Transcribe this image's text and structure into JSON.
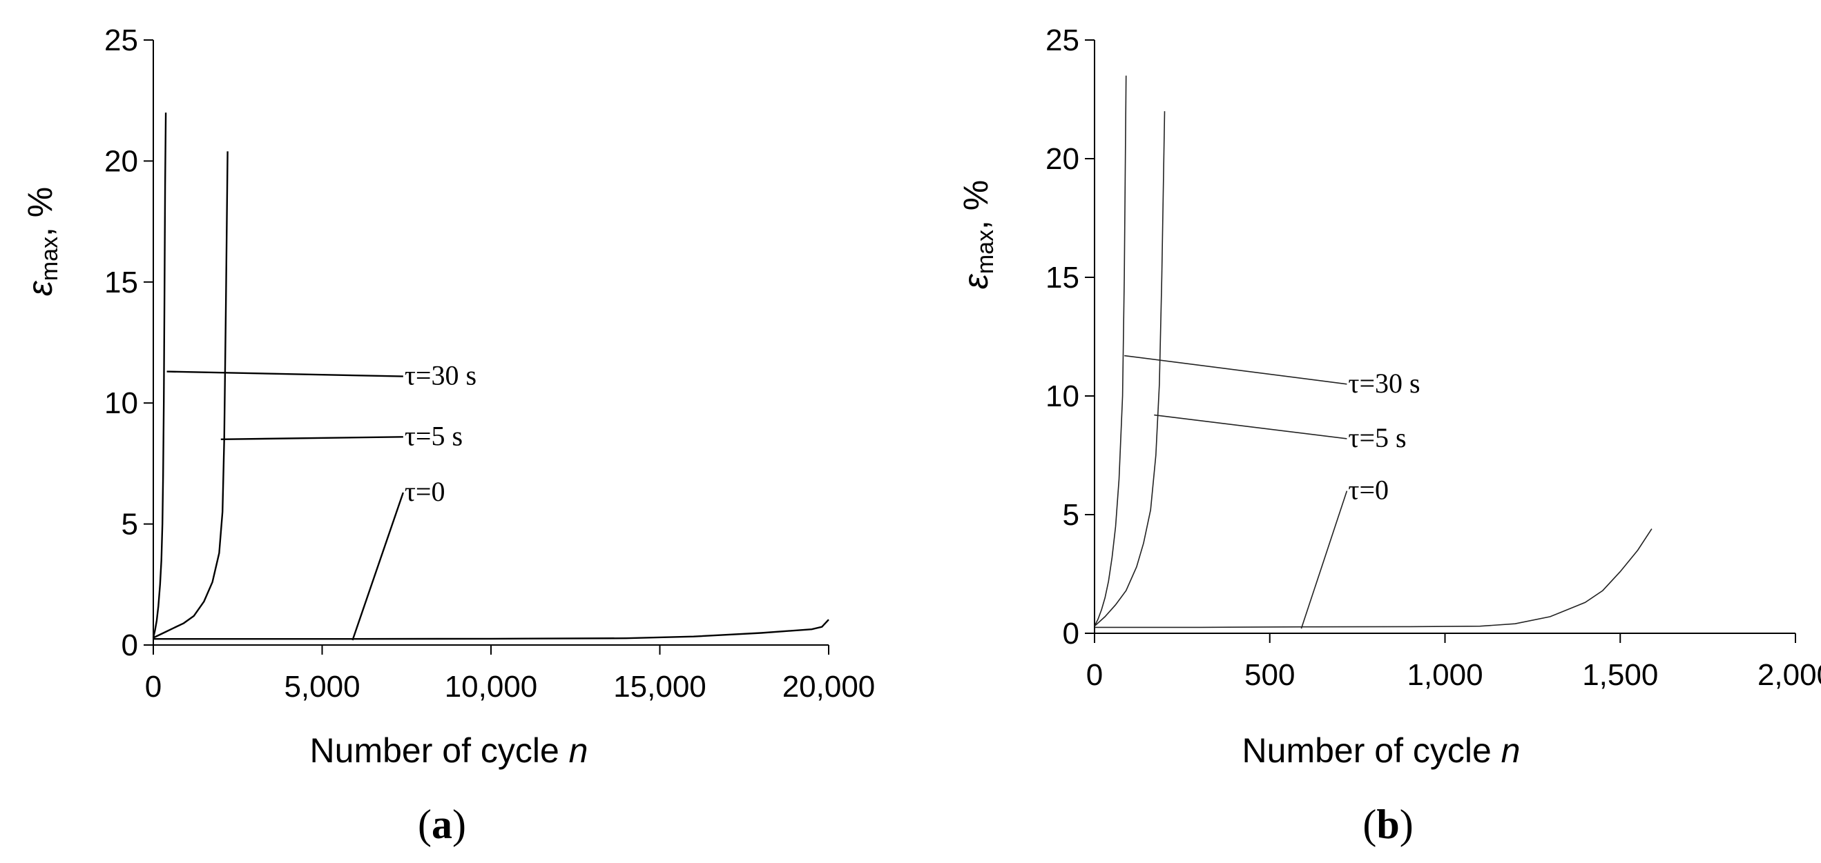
{
  "panels": [
    {
      "label_open": "(",
      "label_letter": "a",
      "label_close": ")",
      "ylabel_symbol": "ε",
      "ylabel_sub": "max",
      "ylabel_unit": ", %",
      "xlabel_text": "Number of cycle ",
      "xlabel_var": "n"
    },
    {
      "label_open": "(",
      "label_letter": "b",
      "label_close": ")",
      "ylabel_symbol": "ε",
      "ylabel_sub": "max",
      "ylabel_unit": ", %",
      "xlabel_text": "Number of cycle ",
      "xlabel_var": "n"
    }
  ],
  "chart_data": [
    {
      "type": "line",
      "title": "",
      "xlabel": "Number of cycle n",
      "ylabel": "εmax, %",
      "xlim": [
        0,
        20000
      ],
      "ylim": [
        0,
        25
      ],
      "xticks": [
        0,
        5000,
        10000,
        15000,
        20000
      ],
      "xtick_labels": [
        "0",
        "5,000",
        "10,000",
        "15,000",
        "20,000"
      ],
      "yticks": [
        0,
        5,
        10,
        15,
        20,
        25
      ],
      "ytick_labels": [
        "0",
        "5",
        "10",
        "15",
        "20",
        "25"
      ],
      "grid": false,
      "series": [
        {
          "name": "τ=30 s",
          "x": [
            0,
            50,
            100,
            150,
            200,
            240,
            270,
            290,
            310,
            330,
            350,
            370
          ],
          "y": [
            0.3,
            0.6,
            1.0,
            1.6,
            2.5,
            3.5,
            5.0,
            7.0,
            10.0,
            14.0,
            19.0,
            22.0
          ]
        },
        {
          "name": "τ=5 s",
          "x": [
            0,
            300,
            600,
            900,
            1200,
            1500,
            1750,
            1950,
            2050,
            2100,
            2150,
            2200
          ],
          "y": [
            0.3,
            0.5,
            0.7,
            0.9,
            1.2,
            1.8,
            2.6,
            3.8,
            5.5,
            8.5,
            14.0,
            20.4
          ]
        },
        {
          "name": "τ=0",
          "x": [
            0,
            5000,
            10000,
            14000,
            16000,
            18000,
            19500,
            19800,
            20000
          ],
          "y": [
            0.25,
            0.25,
            0.26,
            0.28,
            0.35,
            0.5,
            0.65,
            0.75,
            1.05
          ]
        }
      ],
      "annotations": [
        {
          "text": "τ=30 s",
          "x": 7400,
          "y": 11.1,
          "point_x": 400,
          "point_y": 11.3
        },
        {
          "text": "τ=5 s",
          "x": 7400,
          "y": 8.6,
          "point_x": 2000,
          "point_y": 8.5
        },
        {
          "text": "τ=0",
          "x": 7400,
          "y": 6.3,
          "point_x": 5900,
          "point_y": 0.2
        }
      ]
    },
    {
      "type": "line",
      "title": "",
      "xlabel": "Number of cycle n",
      "ylabel": "εmax, %",
      "xlim": [
        0,
        2000
      ],
      "ylim": [
        0,
        25
      ],
      "xticks": [
        0,
        500,
        1000,
        1500,
        2000
      ],
      "xtick_labels": [
        "0",
        "500",
        "1,000",
        "1,500",
        "2,000"
      ],
      "yticks": [
        0,
        5,
        10,
        15,
        20,
        25
      ],
      "ytick_labels": [
        "0",
        "5",
        "10",
        "15",
        "20",
        "25"
      ],
      "grid": false,
      "series": [
        {
          "name": "τ=30 s",
          "x": [
            0,
            10,
            20,
            30,
            40,
            50,
            60,
            70,
            80,
            85,
            90
          ],
          "y": [
            0.3,
            0.6,
            1.0,
            1.5,
            2.2,
            3.2,
            4.5,
            6.5,
            10.0,
            15.0,
            23.5
          ]
        },
        {
          "name": "τ=5 s",
          "x": [
            0,
            30,
            60,
            90,
            120,
            140,
            160,
            175,
            185,
            192,
            200
          ],
          "y": [
            0.3,
            0.7,
            1.2,
            1.8,
            2.8,
            3.8,
            5.2,
            7.5,
            10.5,
            15.0,
            22.0
          ]
        },
        {
          "name": "τ=0",
          "x": [
            0,
            300,
            600,
            900,
            1100,
            1200,
            1300,
            1400,
            1450,
            1500,
            1550,
            1590
          ],
          "y": [
            0.25,
            0.25,
            0.27,
            0.28,
            0.3,
            0.4,
            0.7,
            1.3,
            1.8,
            2.6,
            3.5,
            4.4
          ]
        }
      ],
      "annotations": [
        {
          "text": "τ=30 s",
          "x": 720,
          "y": 10.5,
          "point_x": 85,
          "point_y": 11.7
        },
        {
          "text": "τ=5 s",
          "x": 720,
          "y": 8.2,
          "point_x": 170,
          "point_y": 9.2
        },
        {
          "text": "τ=0",
          "x": 720,
          "y": 6.0,
          "point_x": 590,
          "point_y": 0.2
        }
      ]
    }
  ]
}
